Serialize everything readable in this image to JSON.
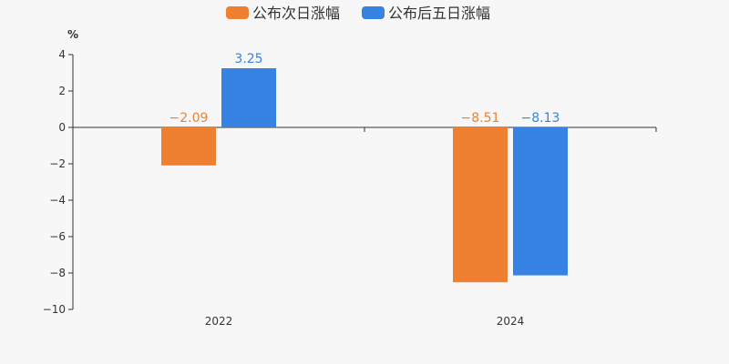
{
  "chart_data": {
    "type": "bar",
    "title": "",
    "xlabel": "",
    "ylabel": "%",
    "categories": [
      "2022",
      "2024"
    ],
    "series": [
      {
        "name": "公布次日涨幅",
        "values": [
          -2.09,
          -8.51
        ],
        "labels": [
          "−2.09",
          "−8.51"
        ],
        "color": "#ef7f31"
      },
      {
        "name": "公布后五日涨幅",
        "values": [
          3.25,
          -8.13
        ],
        "labels": [
          "3.25",
          "−8.13"
        ],
        "color": "#3683e4"
      }
    ],
    "ylim": [
      -10,
      4
    ],
    "yticks": [
      4,
      2,
      0,
      -2,
      -4,
      -6,
      -8,
      -10
    ],
    "ytick_labels": [
      "4",
      "2",
      "0",
      "−2",
      "−4",
      "−6",
      "−8",
      "−10"
    ],
    "grid": false,
    "legend": "top-center"
  }
}
